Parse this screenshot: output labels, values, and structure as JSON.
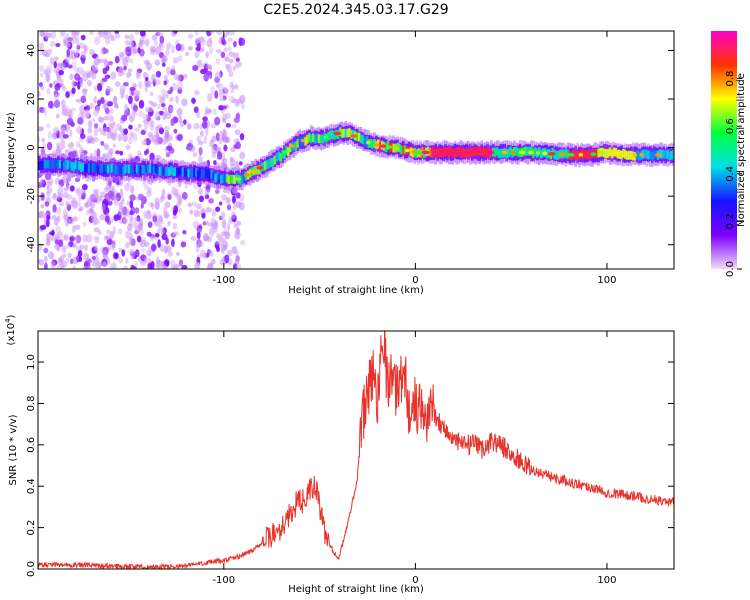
{
  "title": "C2E5.2024.345.03.17.G29",
  "chart_data": [
    {
      "type": "heatmap",
      "xlabel": "Height of straight line (km)",
      "ylabel": "Frequency (Hz)",
      "xlim": [
        -197,
        135
      ],
      "ylim": [
        -50,
        48
      ],
      "xticks": [
        -100,
        0,
        100
      ],
      "yticks": [
        -40,
        -20,
        0,
        20,
        40
      ],
      "grid": false,
      "ridge": {
        "x": [
          -197,
          -185,
          -175,
          -160,
          -140,
          -125,
          -110,
          -100,
          -92,
          -85,
          -78,
          -70,
          -62,
          -55,
          -48,
          -40,
          -35,
          -28,
          -20,
          -12,
          -5,
          0,
          20,
          40,
          60,
          80,
          90,
          100,
          110,
          120,
          135
        ],
        "y": [
          -7,
          -7,
          -8,
          -9,
          -9,
          -10,
          -11,
          -13,
          -13,
          -10,
          -7,
          -3,
          2,
          4,
          4,
          6,
          6,
          3,
          1,
          0,
          -1,
          -2,
          -2,
          -2,
          -2,
          -3,
          -3,
          -2,
          -3,
          -3,
          -3
        ]
      },
      "noise_region": {
        "x_range": [
          -197,
          -92
        ],
        "y_range": [
          -50,
          48
        ]
      },
      "colorbar": {
        "label": "Normalized spectral amplitude",
        "range": [
          0,
          1
        ],
        "ticks": [
          "0.0",
          "0.2",
          "0.4",
          "0.6",
          "0.8"
        ],
        "tick_values": [
          0.0,
          0.2,
          0.4,
          0.6,
          0.8
        ],
        "colors": [
          "#f0dcf8",
          "#7b00ff",
          "#1414ff",
          "#00e0e8",
          "#00ff40",
          "#ffff00",
          "#ff3300",
          "#ff00c8"
        ]
      }
    },
    {
      "type": "line",
      "xlabel": "Height of straight line (km)",
      "ylabel": "SNR (10 * v/v)",
      "scale_note": "(x10",
      "scale_exp": "4",
      "scale_close": ")",
      "xlim": [
        -197,
        135
      ],
      "ylim": [
        0,
        1.15
      ],
      "xticks": [
        -100,
        0,
        100
      ],
      "yticks": [
        "0.0",
        "0.2",
        "0.4",
        "0.6",
        "0.8",
        "1.0"
      ],
      "ytick_values": [
        0.0,
        0.2,
        0.4,
        0.6,
        0.8,
        1.0
      ],
      "grid": false,
      "color": "#e8322a",
      "series": [
        {
          "x": [
            -197,
            -180,
            -160,
            -140,
            -130,
            -120,
            -110,
            -100,
            -92,
            -85,
            -80,
            -75,
            -70,
            -65,
            -62,
            -58,
            -55,
            -52,
            -50,
            -48,
            -45,
            -42,
            -40,
            -38,
            -35,
            -30,
            -28,
            -25,
            -22,
            -20,
            -18,
            -16,
            -15,
            -12,
            -10,
            -7,
            -5,
            -3,
            0,
            3,
            5,
            8,
            10,
            12,
            15,
            20,
            25,
            30,
            35,
            40,
            45,
            50,
            55,
            60,
            70,
            80,
            90,
            100,
            110,
            120,
            135
          ],
          "y": [
            0.02,
            0.02,
            0.015,
            0.01,
            0.012,
            0.015,
            0.03,
            0.04,
            0.06,
            0.09,
            0.13,
            0.16,
            0.2,
            0.27,
            0.32,
            0.33,
            0.38,
            0.4,
            0.3,
            0.2,
            0.12,
            0.07,
            0.06,
            0.12,
            0.23,
            0.45,
            0.7,
            0.85,
            0.95,
            0.8,
            1.05,
            1.16,
            0.9,
            0.95,
            0.85,
            0.95,
            0.9,
            0.75,
            0.8,
            0.75,
            0.72,
            0.78,
            0.75,
            0.72,
            0.68,
            0.62,
            0.6,
            0.6,
            0.58,
            0.62,
            0.6,
            0.55,
            0.52,
            0.48,
            0.45,
            0.42,
            0.4,
            0.37,
            0.36,
            0.34,
            0.32
          ]
        }
      ]
    }
  ],
  "colors": {
    "axis": "#000000",
    "noise": "#7b00ff"
  }
}
